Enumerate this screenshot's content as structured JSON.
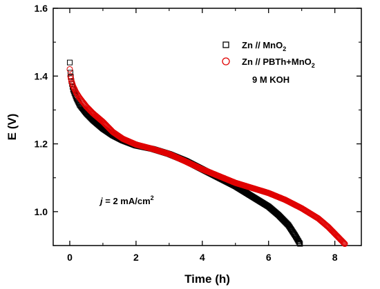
{
  "chart_data": {
    "type": "scatter",
    "xlabel": "Time (h)",
    "ylabel": "E (V)",
    "xlim": [
      -0.5,
      8.8
    ],
    "ylim": [
      0.9,
      1.6
    ],
    "x_ticks": [
      0,
      2,
      4,
      6,
      8
    ],
    "x_tick_labels": [
      "0",
      "2",
      "4",
      "6",
      "8"
    ],
    "y_ticks": [
      1.0,
      1.2,
      1.4,
      1.6
    ],
    "y_tick_labels": [
      "1.0",
      "1.2",
      "1.4",
      "1.6"
    ],
    "grid": false,
    "legend_position": "top-right",
    "series": [
      {
        "name": "Zn // MnO",
        "name_subscript": "2",
        "marker": "open-square",
        "color": "#000000",
        "x": [
          0.0,
          0.02,
          0.05,
          0.1,
          0.2,
          0.3,
          0.5,
          0.7,
          1.0,
          1.3,
          1.6,
          2.0,
          2.5,
          3.0,
          3.5,
          4.0,
          4.5,
          5.0,
          5.5,
          6.0,
          6.3,
          6.6,
          6.8,
          6.95
        ],
        "y": [
          1.44,
          1.41,
          1.385,
          1.36,
          1.335,
          1.315,
          1.29,
          1.27,
          1.245,
          1.225,
          1.21,
          1.195,
          1.185,
          1.17,
          1.15,
          1.125,
          1.1,
          1.075,
          1.045,
          1.015,
          0.99,
          0.96,
          0.93,
          0.905
        ]
      },
      {
        "name": "Zn // PBTh+MnO",
        "name_subscript": "2",
        "marker": "open-circle",
        "color": "#e00000",
        "x": [
          0.0,
          0.02,
          0.05,
          0.1,
          0.2,
          0.3,
          0.5,
          0.7,
          1.0,
          1.3,
          1.6,
          2.0,
          2.5,
          3.0,
          3.5,
          4.0,
          4.5,
          5.0,
          5.5,
          6.0,
          6.5,
          7.0,
          7.5,
          7.8,
          8.1,
          8.3
        ],
        "y": [
          1.42,
          1.4,
          1.385,
          1.37,
          1.35,
          1.335,
          1.31,
          1.29,
          1.265,
          1.235,
          1.215,
          1.198,
          1.185,
          1.17,
          1.148,
          1.125,
          1.105,
          1.085,
          1.07,
          1.055,
          1.035,
          1.01,
          0.98,
          0.955,
          0.925,
          0.905
        ]
      }
    ],
    "annotations": {
      "electrolyte": "9 M KOH",
      "current_j": "j",
      "current_rest": " = 2 mA/cm",
      "current_sup": "2"
    }
  }
}
